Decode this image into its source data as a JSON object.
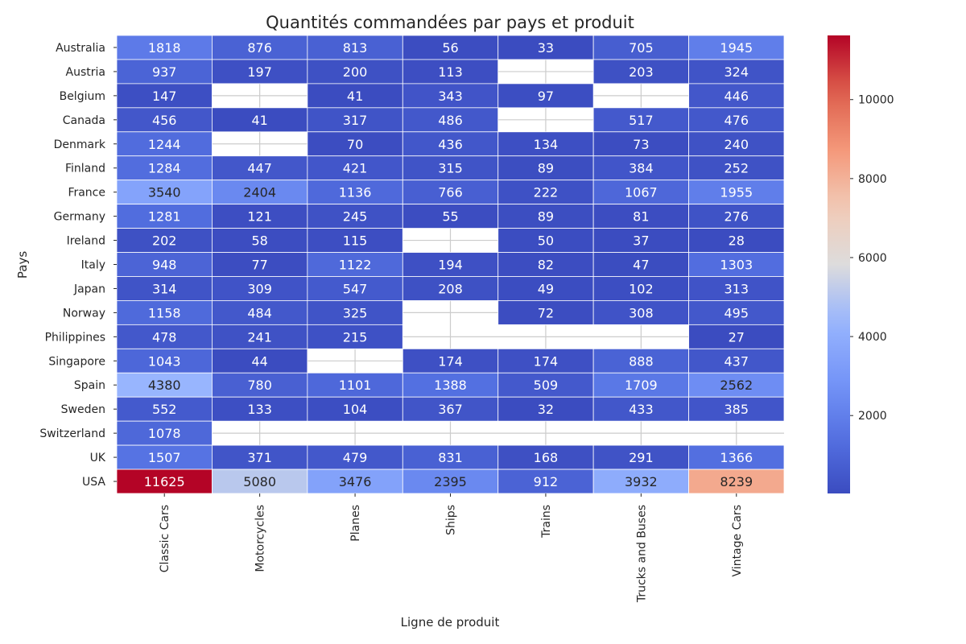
{
  "chart_data": {
    "type": "heatmap",
    "title": "Quantités commandées par pays et produit",
    "xlabel": "Ligne de produit",
    "ylabel": "Pays",
    "x_categories": [
      "Classic Cars",
      "Motorcycles",
      "Planes",
      "Ships",
      "Trains",
      "Trucks and Buses",
      "Vintage Cars"
    ],
    "y_categories": [
      "Australia",
      "Austria",
      "Belgium",
      "Canada",
      "Denmark",
      "Finland",
      "France",
      "Germany",
      "Ireland",
      "Italy",
      "Japan",
      "Norway",
      "Philippines",
      "Singapore",
      "Spain",
      "Sweden",
      "Switzerland",
      "UK",
      "USA"
    ],
    "values": [
      [
        1818,
        876,
        813,
        56,
        33,
        705,
        1945
      ],
      [
        937,
        197,
        200,
        113,
        null,
        203,
        324
      ],
      [
        147,
        null,
        41,
        343,
        97,
        null,
        446
      ],
      [
        456,
        41,
        317,
        486,
        null,
        517,
        476
      ],
      [
        1244,
        null,
        70,
        436,
        134,
        73,
        240
      ],
      [
        1284,
        447,
        421,
        315,
        89,
        384,
        252
      ],
      [
        3540,
        2404,
        1136,
        766,
        222,
        1067,
        1955
      ],
      [
        1281,
        121,
        245,
        55,
        89,
        81,
        276
      ],
      [
        202,
        58,
        115,
        null,
        50,
        37,
        28
      ],
      [
        948,
        77,
        1122,
        194,
        82,
        47,
        1303
      ],
      [
        314,
        309,
        547,
        208,
        49,
        102,
        313
      ],
      [
        1158,
        484,
        325,
        null,
        72,
        308,
        495
      ],
      [
        478,
        241,
        215,
        null,
        null,
        null,
        27
      ],
      [
        1043,
        44,
        null,
        174,
        174,
        888,
        437
      ],
      [
        4380,
        780,
        1101,
        1388,
        509,
        1709,
        2562
      ],
      [
        552,
        133,
        104,
        367,
        32,
        433,
        385
      ],
      [
        1078,
        null,
        null,
        null,
        null,
        null,
        null
      ],
      [
        1507,
        371,
        479,
        831,
        168,
        291,
        1366
      ],
      [
        11625,
        5080,
        3476,
        2395,
        912,
        3932,
        8239
      ]
    ],
    "colormap": "coolwarm",
    "vmin": 27,
    "vmax": 11625,
    "colorbar_ticks": [
      2000,
      4000,
      6000,
      8000,
      10000
    ],
    "annotated": true,
    "grid": true,
    "legend": "colorbar-right"
  }
}
